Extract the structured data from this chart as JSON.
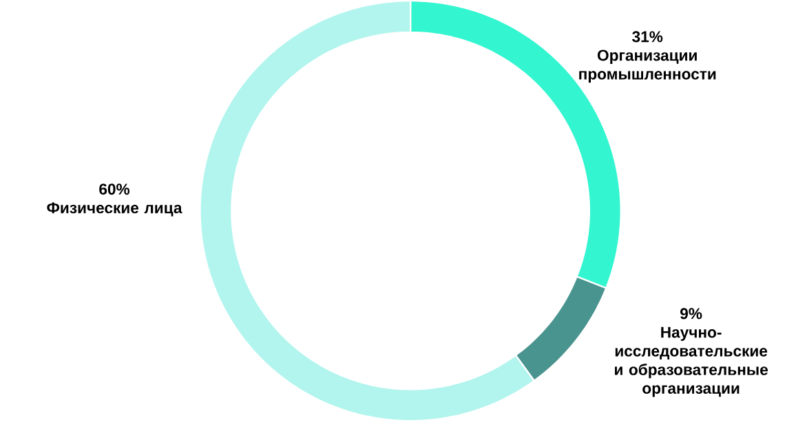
{
  "chart_data": {
    "type": "donut",
    "categories": [
      "Организации промышленности",
      "Научно-исследовательские и образовательные организации",
      "Физические лица"
    ],
    "values": [
      31,
      9,
      60
    ],
    "value_labels": [
      "31%",
      "9%",
      "60%"
    ],
    "colors": [
      "#33f5d0",
      "#4a9490",
      "#b2f5ee"
    ]
  }
}
